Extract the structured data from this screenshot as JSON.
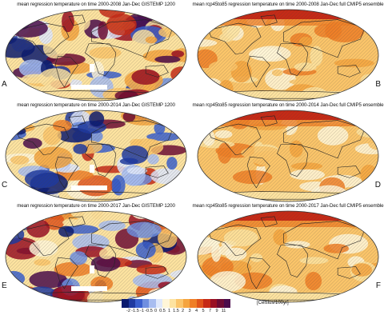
{
  "panels": [
    {
      "title": "mean regression temperature on time 2000-2008 Jan-Dec GISTEMP 1200",
      "label": "A",
      "style": "obs"
    },
    {
      "title": "mean rcp45to85 regression temperature on time 2000-2008 Jan-Dec full CMIP5 ensemble",
      "label": "B",
      "style": "model"
    },
    {
      "title": "mean regression temperature on time 2000-2014 Jan-Dec GISTEMP 1200",
      "label": "C",
      "style": "obs"
    },
    {
      "title": "mean rcp45to85 regression temperature on time 2000-2014 Jan-Dec full CMIP5 ensemble",
      "label": "D",
      "style": "model"
    },
    {
      "title": "mean regression temperature on time 2000-2017 Jan-Dec GISTEMP 1200",
      "label": "E",
      "style": "obs"
    },
    {
      "title": "mean rcp45to85 regression temperature on time 2000-2017 Jan-Dec full CMIP5 ensemble",
      "label": "F",
      "style": "model"
    }
  ],
  "legend": {
    "ticks": [
      "-2",
      "-1.5",
      "-1",
      "-0.5",
      "0",
      "0.5",
      "1",
      "1.5",
      "2",
      "3",
      "4",
      "5",
      "7",
      "9",
      "11"
    ],
    "unit": "[Celsius/100yr]",
    "colors": [
      "#0a1a6e",
      "#1f3aa0",
      "#3a5fcd",
      "#6f8fe0",
      "#a8bdf0",
      "#dfe8fb",
      "#fff6d8",
      "#fde3a0",
      "#fbc56a",
      "#f5a43e",
      "#ef7f27",
      "#e0541a",
      "#c62a16",
      "#9a0f22",
      "#6d0a33",
      "#4a0a4a"
    ]
  }
}
